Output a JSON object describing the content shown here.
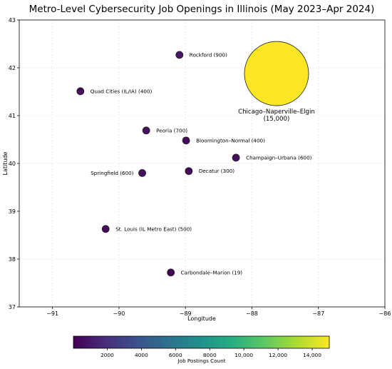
{
  "chart_data": {
    "type": "scatter",
    "title": "Metro-Level Cybersecurity Job Openings in Illinois (May 2023–Apr 2024)",
    "xlabel": "Longitude",
    "ylabel": "Latitude",
    "xlim": [
      -91.5,
      -86
    ],
    "ylim": [
      37,
      43
    ],
    "xticks": [
      "−91",
      "−90",
      "−89",
      "−88",
      "−87",
      "−86"
    ],
    "yticks": [
      "37",
      "38",
      "39",
      "40",
      "41",
      "42",
      "43"
    ],
    "grid": true,
    "size_encodes": "job postings count",
    "points": [
      {
        "label": "Rockford (900)",
        "x": -89.09,
        "y": 42.27,
        "value": 900
      },
      {
        "label": "Quad Cities (IL/IA) (400)",
        "x": -90.58,
        "y": 41.51,
        "value": 400
      },
      {
        "label": "Peoria (700)",
        "x": -89.59,
        "y": 40.69,
        "value": 700
      },
      {
        "label": "Bloomington–Normal (400)",
        "x": -88.99,
        "y": 40.48,
        "value": 400
      },
      {
        "label": "Champaign–Urbana (600)",
        "x": -88.24,
        "y": 40.12,
        "value": 600
      },
      {
        "label": "Decatur (300)",
        "x": -88.95,
        "y": 39.84,
        "value": 300
      },
      {
        "label": "Springfield (600)",
        "x": -89.65,
        "y": 39.8,
        "value": 600
      },
      {
        "label": "St. Louis (IL Metro East) (500)",
        "x": -90.2,
        "y": 38.63,
        "value": 500
      },
      {
        "label": "Carbondale–Marion (19)",
        "x": -89.22,
        "y": 37.72,
        "value": 19
      },
      {
        "label": "Chicago–Naperville–Elgin\n(15,000)",
        "x": -87.63,
        "y": 41.88,
        "value": 15000
      }
    ],
    "colorbar": {
      "colormap": "viridis",
      "min": 19,
      "max": 15000,
      "ticks": [
        2000,
        4000,
        6000,
        8000,
        10000,
        12000,
        14000
      ],
      "tick_labels": [
        "2000",
        "4000",
        "6000",
        "8000",
        "10,000",
        "12,000",
        "14,000"
      ],
      "label": "Job Postings Count"
    }
  }
}
